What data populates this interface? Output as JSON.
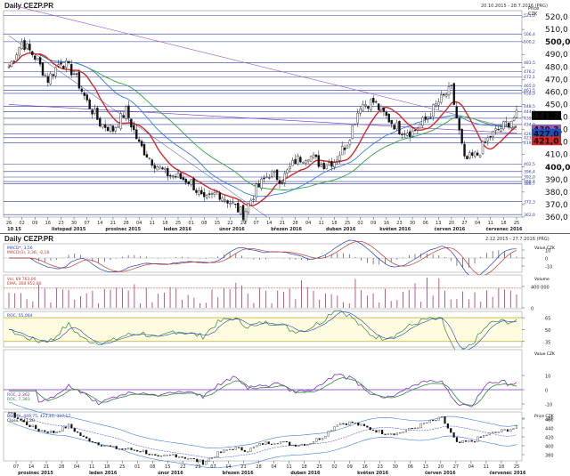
{
  "window": {
    "title": "Daily CEZP.PR",
    "range": "20.10.2015 - 28.7.2016 (PRG)"
  },
  "main_chart": {
    "y_title": "Price",
    "y_unit": "CZK",
    "y_ticks": [
      "520,0",
      "510,0",
      "500,0",
      "490,0",
      "480,0",
      "470,0",
      "460,0",
      "450,0",
      "440,0",
      "430,0",
      "420,0",
      "410,0",
      "400,0",
      "390,0",
      "380,0",
      "370,0",
      "360,0"
    ],
    "bold_ticks": [
      "500,0",
      "400,0"
    ],
    "badges": [
      {
        "text": "441,2",
        "color": "#000000"
      },
      {
        "text": "430,5",
        "color": "#2aa63d"
      },
      {
        "text": "430,3",
        "color": "#9b59b6"
      },
      {
        "text": "427,0",
        "color": "#1f4fbf"
      },
      {
        "text": "421,0",
        "color": "#d62728"
      }
    ],
    "hline_labels": [
      "521,0",
      "506,4",
      "500,2",
      "483,5",
      "476,2",
      "472,1",
      "465,0",
      "461,5",
      "458,9",
      "448,5",
      "444,2",
      "439,0",
      "434,0",
      "426,4",
      "423,4",
      "419,4",
      "402,5",
      "396,4",
      "392,0",
      "388,4",
      "386,7",
      "372,3",
      "362,0"
    ],
    "month_labels": [
      "10 15",
      "listopad 2015",
      "prosinec 2015",
      "leden 2016",
      "únor 2016",
      "březen 2016",
      "duben 2016",
      "květen 2016",
      "červen 2016",
      "červenec 2016"
    ],
    "day_labels": [
      "26",
      "02",
      "09",
      "16",
      "23",
      "30",
      "07",
      "14",
      "21",
      "28",
      "04",
      "11",
      "18",
      "25",
      "01",
      "08",
      "15",
      "22",
      "29",
      "07",
      "14",
      "21",
      "28",
      "04",
      "11",
      "18",
      "25",
      "02",
      "09",
      "16",
      "23",
      "30",
      "06",
      "13",
      "20",
      "27",
      "04",
      "11",
      "18",
      "25"
    ]
  },
  "lower_window": {
    "title": "Daily CEZP.PR",
    "range": "2.12.2015 - 27.7.2016 (PRG)",
    "macd": {
      "legend_a": "MACD*, 3,56",
      "legend_b": "MACD(3), 3,36, -0,18",
      "unit": "Value CZK",
      "ticks": [
        "10",
        "0",
        "-10"
      ]
    },
    "volume": {
      "legend_a": "Vol, 69 763,00",
      "legend_b": "EMA, 368 952,80",
      "unit": "Volume",
      "ticks": [
        "400 000",
        "0"
      ]
    },
    "roc_band": {
      "legend_a": "ROC, 55,064",
      "legend_b": "ROC(3), 62,356",
      "ticks": [
        "65",
        "50",
        "35"
      ]
    },
    "roc": {
      "legend_a": "ROC, 2,362",
      "legend_b": "ROC, 7,383",
      "unit": "Value CZK",
      "ticks": [
        "10",
        "0",
        "-10",
        "-20"
      ]
    },
    "price": {
      "legend_a": "BB(20), 449,75, 423,45, 397,17",
      "legend_b": "Close, 441,20",
      "unit": "Price CZK",
      "ticks": [
        "460",
        "440",
        "420",
        "400",
        "380"
      ]
    },
    "month_labels": [
      "prosinec 2015",
      "leden 2016",
      "únor 2016",
      "březen 2016",
      "duben 2016",
      "květen 2016",
      "červen 2016",
      "červenec 2016"
    ],
    "day_labels": [
      "07",
      "14",
      "21",
      "28",
      "04",
      "11",
      "18",
      "25",
      "01",
      "08",
      "15",
      "22",
      "29",
      "07",
      "14",
      "21",
      "28",
      "04",
      "11",
      "18",
      "25",
      "02",
      "09",
      "16",
      "23",
      "30",
      "06",
      "13",
      "20",
      "27",
      "04",
      "11",
      "18",
      "25"
    ]
  },
  "chart_data": {
    "type": "line",
    "title": "Daily CEZP.PR",
    "ylabel": "Price CZK",
    "ylim": [
      360,
      525
    ],
    "grid": true,
    "x": [
      "2015-10-26",
      "2015-11-02",
      "2015-11-09",
      "2015-11-16",
      "2015-11-23",
      "2015-11-30",
      "2015-12-07",
      "2015-12-14",
      "2015-12-21",
      "2015-12-28",
      "2016-01-04",
      "2016-01-11",
      "2016-01-18",
      "2016-01-25",
      "2016-02-01",
      "2016-02-08",
      "2016-02-15",
      "2016-02-22",
      "2016-02-29",
      "2016-03-07",
      "2016-03-14",
      "2016-03-21",
      "2016-03-28",
      "2016-04-04",
      "2016-04-11",
      "2016-04-18",
      "2016-04-25",
      "2016-05-02",
      "2016-05-09",
      "2016-05-16",
      "2016-05-23",
      "2016-05-30",
      "2016-06-06",
      "2016-06-13",
      "2016-06-20",
      "2016-06-27",
      "2016-07-04",
      "2016-07-11",
      "2016-07-18",
      "2016-07-25"
    ],
    "series": [
      {
        "name": "Close",
        "values": [
          480,
          500,
          488,
          470,
          485,
          475,
          452,
          435,
          430,
          445,
          418,
          405,
          395,
          392,
          388,
          372,
          380,
          372,
          362,
          382,
          395,
          390,
          405,
          410,
          402,
          405,
          420,
          450,
          452,
          440,
          430,
          428,
          438,
          452,
          462,
          405,
          410,
          425,
          433,
          441
        ]
      }
    ]
  }
}
